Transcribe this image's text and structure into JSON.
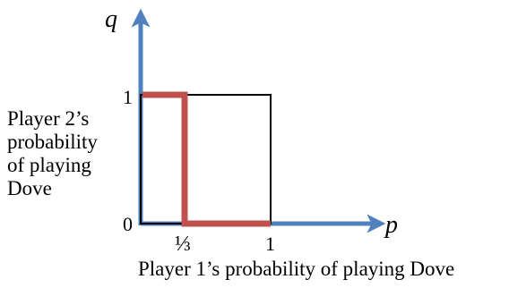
{
  "axes": {
    "x_var": "p",
    "y_var": "q",
    "x_label": "Player 1’s probability of playing Dove",
    "y_label_lines": [
      "Player 2’s",
      "probability",
      "of playing",
      "Dove"
    ],
    "origin_label": "0",
    "x_tick_third": "⅓",
    "x_tick_one": "1",
    "y_tick_one": "1",
    "axis_color": "#4f81bd"
  },
  "square": {
    "color": "#000000"
  },
  "best_response": {
    "color": "#c0504d",
    "points": [
      [
        0,
        1
      ],
      [
        0.333,
        1
      ],
      [
        0.333,
        0
      ],
      [
        1,
        0
      ]
    ]
  }
}
